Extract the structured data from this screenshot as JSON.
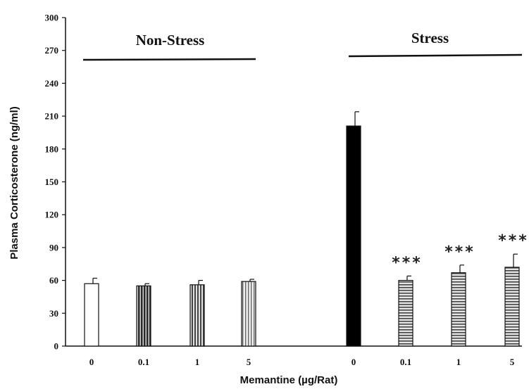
{
  "chart_data": {
    "type": "bar",
    "xlabel": "Memantine (µg/Rat)",
    "ylabel": "Plasma Corticosterone (ng/ml)",
    "ylim": [
      0,
      300
    ],
    "yticks": [
      0,
      30,
      60,
      90,
      120,
      150,
      180,
      210,
      240,
      270,
      300
    ],
    "groups": [
      {
        "label": "Non-Stress",
        "start": 0,
        "end": 3
      },
      {
        "label": "Stress",
        "start": 4,
        "end": 7
      }
    ],
    "bars": [
      {
        "group": "Non-Stress",
        "category": "0",
        "value": 57,
        "error": 5,
        "fill": "white",
        "significance": ""
      },
      {
        "group": "Non-Stress",
        "category": "0.1",
        "value": 55,
        "error": 2,
        "fill": "vstripe-dark",
        "significance": ""
      },
      {
        "group": "Non-Stress",
        "category": "1",
        "value": 56,
        "error": 4,
        "fill": "vstripe-mid",
        "significance": ""
      },
      {
        "group": "Non-Stress",
        "category": "5",
        "value": 59,
        "error": 2,
        "fill": "vstripe-light",
        "significance": ""
      },
      {
        "group": "Stress",
        "category": "0",
        "value": 201,
        "error": 13,
        "fill": "black",
        "significance": ""
      },
      {
        "group": "Stress",
        "category": "0.1",
        "value": 60,
        "error": 4,
        "fill": "hstripe",
        "significance": "***"
      },
      {
        "group": "Stress",
        "category": "1",
        "value": 67,
        "error": 7,
        "fill": "hstripe",
        "significance": "***"
      },
      {
        "group": "Stress",
        "category": "5",
        "value": 72,
        "error": 12,
        "fill": "hstripe",
        "significance": "***"
      }
    ]
  }
}
